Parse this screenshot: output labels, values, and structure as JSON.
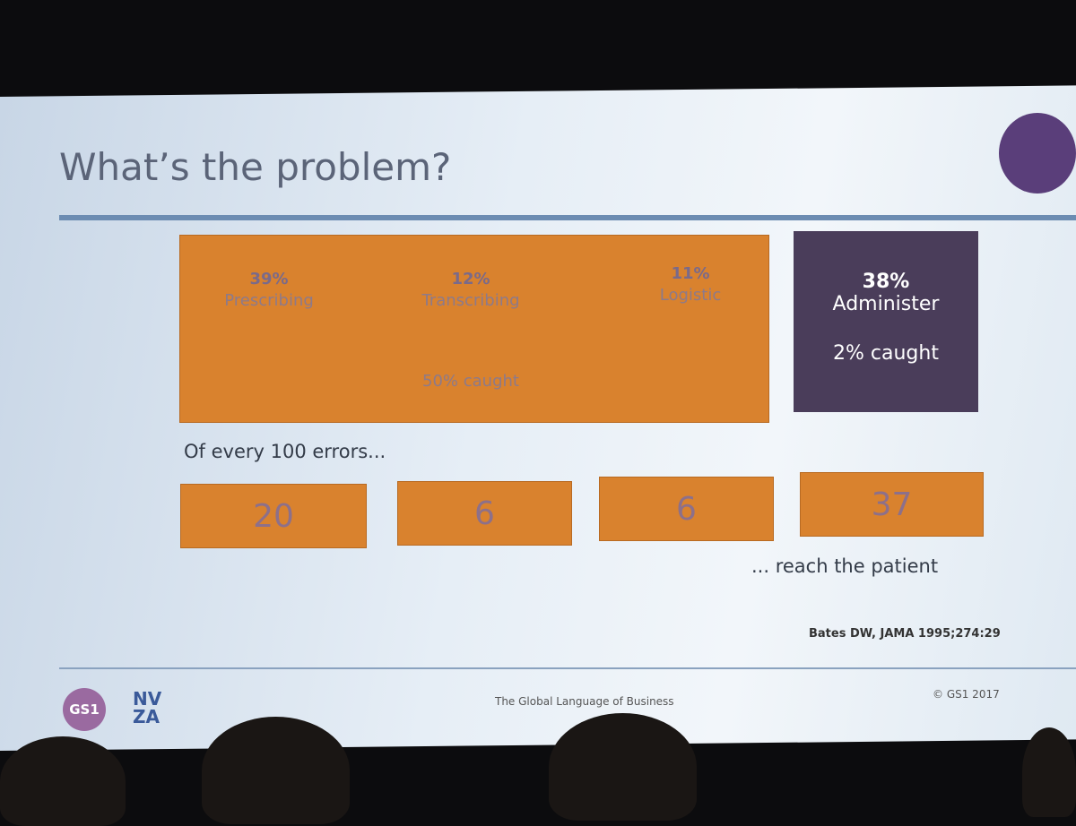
{
  "title": "What’s the problem?",
  "stages": [
    {
      "percent": "39%",
      "label": "Prescribing"
    },
    {
      "percent": "12%",
      "label": "Transcribing"
    },
    {
      "percent": "11%",
      "label": "Logistic"
    }
  ],
  "stages_caught": "50% caught",
  "administer": {
    "percent": "38%",
    "label": "Administer",
    "caught": "2% caught"
  },
  "intro": "Of every 100 errors...",
  "reach_counts": [
    20,
    6,
    6,
    37
  ],
  "outro": "... reach the patient",
  "citation": "Bates DW, JAMA 1995;274:29",
  "footer": {
    "tagline": "The Global Language of Business",
    "copyright": "© GS1 2017",
    "logo_gs1": "GS1",
    "logo_nv": "NV",
    "logo_za": "ZA"
  }
}
